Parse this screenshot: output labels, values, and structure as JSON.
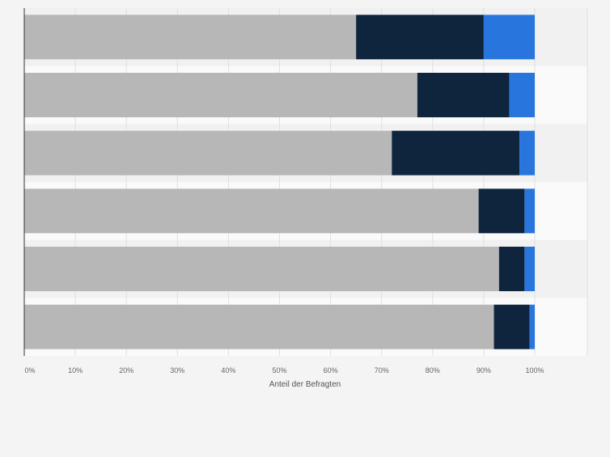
{
  "chart_data": {
    "type": "bar",
    "orientation": "horizontal",
    "stacked": true,
    "title": "",
    "xlabel": "Anteil der Befragten",
    "ylabel": "",
    "xlim": [
      0,
      100
    ],
    "x_ticks": [
      "0%",
      "10%",
      "20%",
      "30%",
      "40%",
      "50%",
      "60%",
      "70%",
      "80%",
      "90%",
      "100%"
    ],
    "grid": true,
    "legend": "none",
    "series": [
      {
        "color": "#b7b7b7",
        "values": [
          65,
          77,
          72,
          89,
          93,
          92
        ]
      },
      {
        "color": "#0e253d",
        "values": [
          25,
          18,
          25,
          9,
          5,
          7
        ]
      },
      {
        "color": "#2876dd",
        "values": [
          10,
          5,
          3,
          2,
          2,
          1
        ]
      }
    ]
  }
}
